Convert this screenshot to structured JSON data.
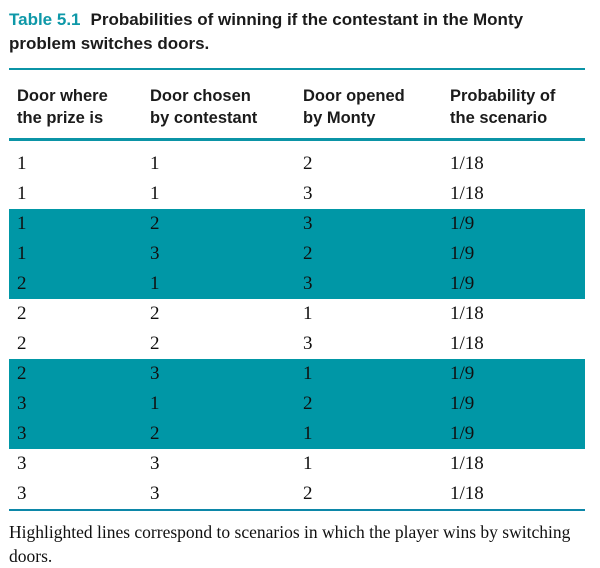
{
  "title": {
    "label": "Table 5.1",
    "text": "Probabilities of winning if the contestant in the Monty problem switches doors."
  },
  "table": {
    "headers": [
      "Door where the prize is",
      "Door chosen by contestant",
      "Door opened by Monty",
      "Probability of the scenario"
    ],
    "rows": [
      {
        "cells": [
          "1",
          "1",
          "2",
          "1/18"
        ],
        "highlighted": false
      },
      {
        "cells": [
          "1",
          "1",
          "3",
          "1/18"
        ],
        "highlighted": false
      },
      {
        "cells": [
          "1",
          "2",
          "3",
          "1/9"
        ],
        "highlighted": true
      },
      {
        "cells": [
          "1",
          "3",
          "2",
          "1/9"
        ],
        "highlighted": true
      },
      {
        "cells": [
          "2",
          "1",
          "3",
          "1/9"
        ],
        "highlighted": true
      },
      {
        "cells": [
          "2",
          "2",
          "1",
          "1/18"
        ],
        "highlighted": false
      },
      {
        "cells": [
          "2",
          "2",
          "3",
          "1/18"
        ],
        "highlighted": false
      },
      {
        "cells": [
          "2",
          "3",
          "1",
          "1/9"
        ],
        "highlighted": true
      },
      {
        "cells": [
          "3",
          "1",
          "2",
          "1/9"
        ],
        "highlighted": true
      },
      {
        "cells": [
          "3",
          "2",
          "1",
          "1/9"
        ],
        "highlighted": true
      },
      {
        "cells": [
          "3",
          "3",
          "1",
          "1/18"
        ],
        "highlighted": false
      },
      {
        "cells": [
          "3",
          "3",
          "2",
          "1/18"
        ],
        "highlighted": false
      }
    ]
  },
  "footnote": "Highlighted lines correspond to scenarios in which the player wins by switching doors.",
  "colors": {
    "accent_rule": "#0b94a6",
    "highlight": "#0097a6",
    "title_label": "#0e98a8",
    "text": "#1b1b1b"
  }
}
